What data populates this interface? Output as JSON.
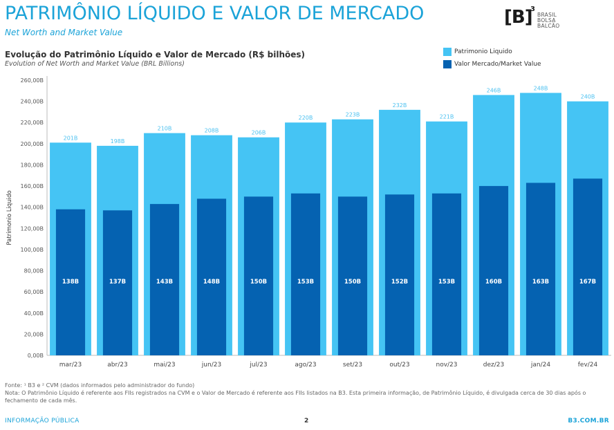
{
  "header": {
    "title": "PATRIMÔNIO LÍQUIDO E VALOR DE MERCADO",
    "subtitle": "Net Worth and Market Value"
  },
  "logo": {
    "mark": "[B]",
    "superscript": "3",
    "lines": [
      "BRASIL",
      "BOLSA",
      "BALCÃO"
    ]
  },
  "chart": {
    "title": "Evolução do Patrimônio Líquido e Valor de Mercado (R$ bilhões)",
    "subtitle": "Evolution of Net Worth and Market Value (BRL Billions)"
  },
  "legend": {
    "items": [
      {
        "label": "Patrimonio Liquido",
        "color": "#45c4f4"
      },
      {
        "label": "Valor Mercado/Market Value",
        "color": "#0562b1"
      }
    ]
  },
  "chart_data": {
    "type": "bar",
    "categories": [
      "mar/23",
      "abr/23",
      "mai/23",
      "jun/23",
      "jul/23",
      "ago/23",
      "set/23",
      "out/23",
      "nov/23",
      "dez/23",
      "jan/24",
      "fev/24"
    ],
    "series": [
      {
        "name": "Patrimonio Liquido",
        "values": [
          201,
          198,
          210,
          208,
          206,
          220,
          223,
          232,
          221,
          246,
          248,
          240
        ],
        "labels": [
          "201B",
          "198B",
          "210B",
          "208B",
          "206B",
          "220B",
          "223B",
          "232B",
          "221B",
          "246B",
          "248B",
          "240B"
        ],
        "color": "#45c4f4"
      },
      {
        "name": "Valor Mercado/Market Value",
        "values": [
          138,
          137,
          143,
          148,
          150,
          153,
          150,
          152,
          153,
          160,
          163,
          167
        ],
        "labels": [
          "138B",
          "137B",
          "143B",
          "148B",
          "150B",
          "153B",
          "150B",
          "152B",
          "153B",
          "160B",
          "163B",
          "167B"
        ],
        "color": "#0562b1"
      }
    ],
    "ylabel": "Patrimonio Liquido",
    "ylim": [
      0,
      260
    ],
    "yticks": [
      "0,00B",
      "20,00B",
      "40,00B",
      "60,00B",
      "80,00B",
      "100,00B",
      "120,00B",
      "140,00B",
      "160,00B",
      "180,00B",
      "200,00B",
      "220,00B",
      "240,00B",
      "260,00B"
    ],
    "grid": false
  },
  "footnote": {
    "line1": "Fonte: ¹ B3 e ² CVM (dados informados pelo administrador do fundo)",
    "line2": "Nota: O Patrimônio Líquido é referente aos FIIs registrados na CVM e o Valor de Mercado é referente aos FIIs listados na B3. Esta primeira informação, de Patrimônio Líquido, é divulgada cerca de 30 dias após o fechamento de cada mês."
  },
  "footer": {
    "left": "INFORMAÇÃO PÚBLICA",
    "page": "2",
    "right": "B3.COM.BR"
  }
}
